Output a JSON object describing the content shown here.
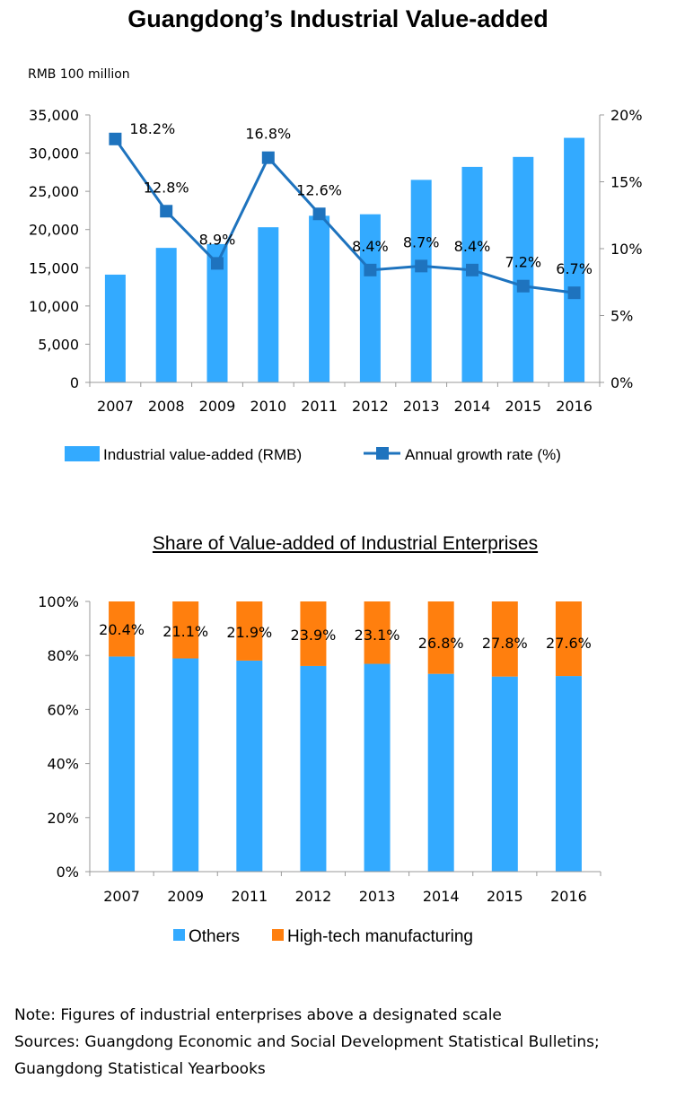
{
  "page_title": "Guangdong’s Industrial Value-added",
  "chart_data": [
    {
      "type": "bar",
      "title": "",
      "ylabel": "RMB 100 million",
      "categories": [
        "2007",
        "2008",
        "2009",
        "2010",
        "2011",
        "2012",
        "2013",
        "2014",
        "2015",
        "2016"
      ],
      "ylim": [
        0,
        35000
      ],
      "yticks": [
        "0",
        "5,000",
        "10,000",
        "15,000",
        "20,000",
        "25,000",
        "30,000",
        "35,000"
      ],
      "y2lim": [
        0,
        20
      ],
      "y2ticks": [
        "0%",
        "5%",
        "10%",
        "15%",
        "20%"
      ],
      "series": [
        {
          "name": "Industrial value-added (RMB)",
          "type": "bar",
          "axis": "left",
          "color": "#33AAFF",
          "values": [
            14100,
            17600,
            18100,
            20300,
            21800,
            22000,
            26500,
            28200,
            29500,
            32000
          ]
        },
        {
          "name": "Annual growth rate (%)",
          "type": "line",
          "axis": "right",
          "color": "#1E73BE",
          "values": [
            18.2,
            12.8,
            8.9,
            16.8,
            12.6,
            8.4,
            8.7,
            8.4,
            7.2,
            6.7
          ],
          "labels": [
            "18.2%",
            "12.8%",
            "8.9%",
            "16.8%",
            "12.6%",
            "8.4%",
            "8.7%",
            "8.4%",
            "7.2%",
            "6.7%"
          ]
        }
      ],
      "legend_position": "bottom",
      "grid": false
    },
    {
      "type": "bar",
      "stacked": true,
      "title": "Share of Value-added of Industrial Enterprises",
      "categories": [
        "2007",
        "2009",
        "2011",
        "2012",
        "2013",
        "2014",
        "2015",
        "2016"
      ],
      "ylim": [
        0,
        100
      ],
      "yticks": [
        "0%",
        "20%",
        "40%",
        "60%",
        "80%",
        "100%"
      ],
      "series": [
        {
          "name": "Others",
          "color": "#33AAFF",
          "values": [
            79.6,
            78.9,
            78.1,
            76.1,
            76.9,
            73.2,
            72.2,
            72.4
          ]
        },
        {
          "name": "High-tech manufacturing",
          "color": "#FF7F0E",
          "values": [
            20.4,
            21.1,
            21.9,
            23.9,
            23.1,
            26.8,
            27.8,
            27.6
          ],
          "labels": [
            "20.4%",
            "21.1%",
            "21.9%",
            "23.9%",
            "23.1%",
            "26.8%",
            "27.8%",
            "27.6%"
          ]
        }
      ],
      "legend_position": "bottom",
      "grid": false
    }
  ],
  "notes": {
    "note": "Note: Figures of industrial enterprises above a designated scale",
    "sources_line1": "Sources: Guangdong Economic and Social Development Statistical Bulletins;",
    "sources_line2": "Guangdong Statistical Yearbooks"
  }
}
